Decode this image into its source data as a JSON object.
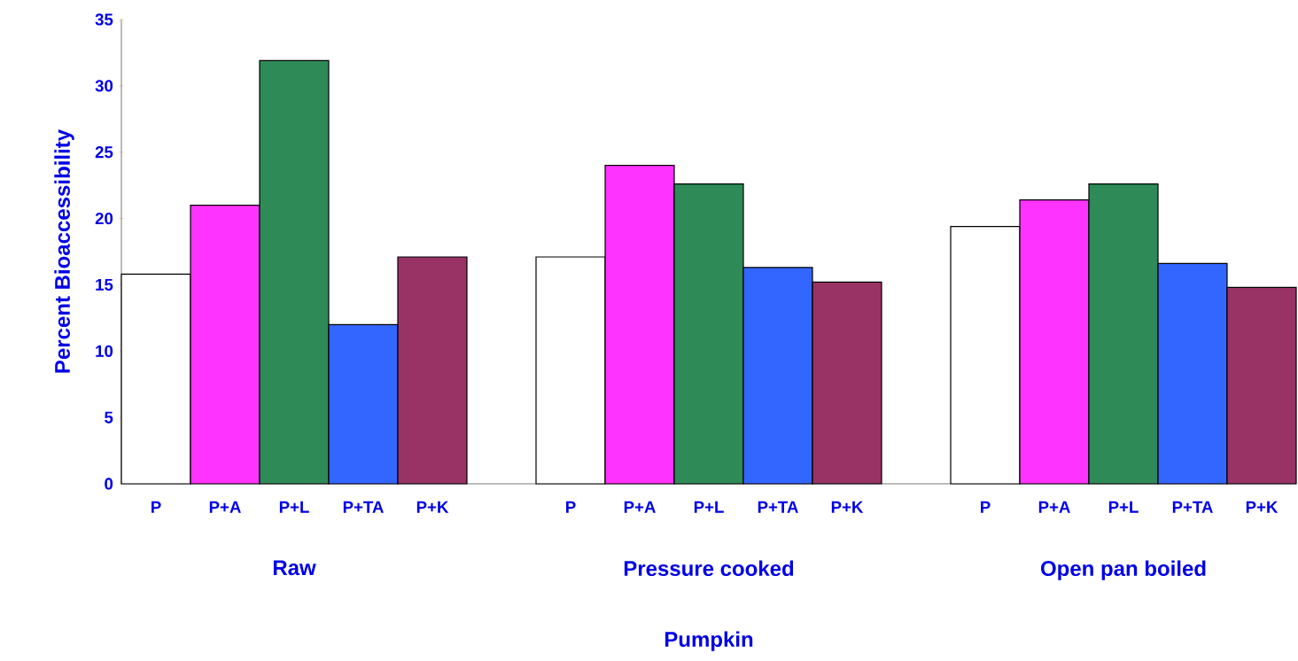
{
  "chart_data": {
    "type": "bar",
    "categories": [
      "P",
      "P+A",
      "P+L",
      "P+TA",
      "P+K",
      null,
      "P",
      "P+A",
      "P+L",
      "P+TA",
      "P+K",
      null,
      "P",
      "P+A",
      "P+L",
      "P+TA",
      "P+K"
    ],
    "values": [
      15.8,
      21.0,
      31.9,
      12.0,
      17.1,
      null,
      17.1,
      24.0,
      22.6,
      16.3,
      15.2,
      null,
      19.4,
      21.4,
      22.6,
      16.6,
      14.8
    ],
    "colors": [
      "#ffffff",
      "#ff33ff",
      "#2e8b57",
      "#3366ff",
      "#993366",
      null,
      "#ffffff",
      "#ff33ff",
      "#2e8b57",
      "#3366ff",
      "#993366",
      null,
      "#ffffff",
      "#ff33ff",
      "#2e8b57",
      "#3366ff",
      "#993366"
    ],
    "ylim": [
      0,
      35
    ],
    "yticks": [
      0,
      5,
      10,
      15,
      20,
      25,
      30,
      35
    ],
    "ylabel": "Percent Bioaccessibility",
    "annotations": [
      "Raw",
      "Pressure cooked",
      "Open pan boiled",
      "Pumpkin"
    ],
    "grid": false
  }
}
